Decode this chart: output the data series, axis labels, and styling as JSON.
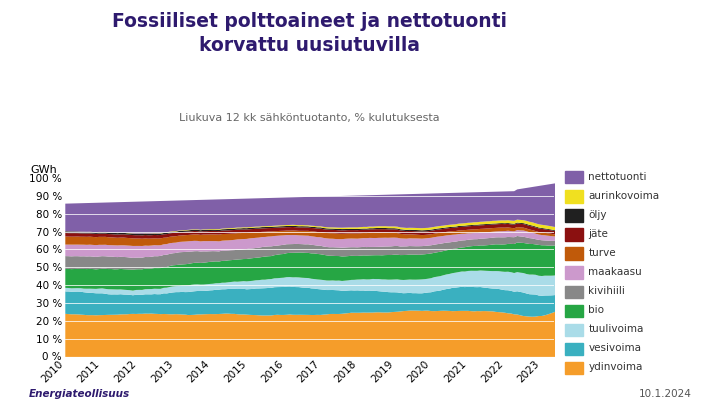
{
  "title": "Fossiiliset polttoaineet ja nettotuonti\nkorvattu uusiutuvilla",
  "subtitle": "Liukuva 12 kk sähköntuotanto, % kulutuksesta",
  "ylabel": "GWh",
  "footer_left": "Energiateollisuus",
  "footer_right": "10.1.2024",
  "background_color": "#ffffff",
  "title_color": "#2e1a6e",
  "layers": [
    {
      "label": "ydinvoima",
      "color": "#f59d2a"
    },
    {
      "label": "vesivoima",
      "color": "#3ab0c0"
    },
    {
      "label": "tuulivoima",
      "color": "#aadce8"
    },
    {
      "label": "bio",
      "color": "#26a644"
    },
    {
      "label": "kivihiili",
      "color": "#888888"
    },
    {
      "label": "maakaasu",
      "color": "#cc99cc"
    },
    {
      "label": "turve",
      "color": "#c05a0a"
    },
    {
      "label": "jäte",
      "color": "#8b1010"
    },
    {
      "label": "öljy",
      "color": "#202020"
    },
    {
      "label": "aurinkovoima",
      "color": "#f0e020"
    },
    {
      "label": "nettotuonti",
      "color": "#8060a8"
    }
  ],
  "yticks": [
    0,
    10,
    20,
    30,
    40,
    50,
    60,
    70,
    80,
    90,
    100
  ],
  "xticks": [
    2010,
    2011,
    2012,
    2013,
    2014,
    2015,
    2016,
    2017,
    2018,
    2019,
    2020,
    2021,
    2022,
    2023
  ],
  "n_points": 168,
  "seed": 7
}
